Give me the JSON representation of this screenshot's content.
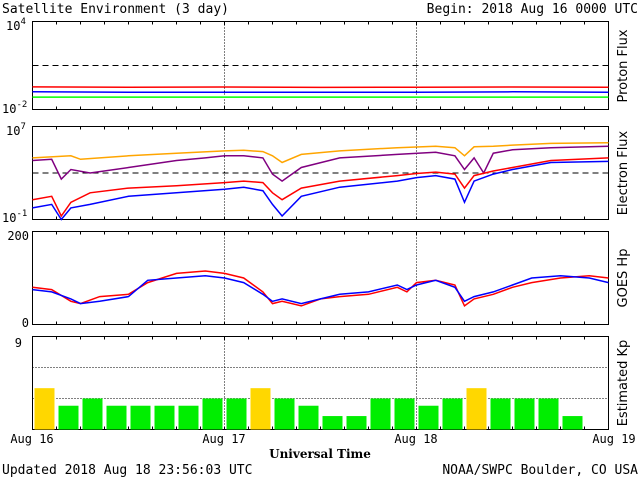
{
  "header": {
    "title": "Satellite Environment (3 day)",
    "begin": "Begin:  2018 Aug 16 0000 UTC"
  },
  "footer": {
    "updated": "Updated 2018 Aug 18 23:56:03 UTC",
    "credit": "NOAA/SWPC Boulder, CO USA"
  },
  "x_axis": {
    "title": "Universal Time",
    "tick_labels": [
      "Aug 16",
      "Aug 17",
      "Aug 18",
      "Aug 19"
    ]
  },
  "colors": {
    "red": "#ff0000",
    "blue": "#0000ff",
    "green": "#00ff00",
    "orange": "#ffa500",
    "purple": "#800080",
    "kp_green": "#00ee00",
    "kp_yellow": "#ffd700"
  },
  "chart_data": [
    {
      "type": "line",
      "ylabel": "Proton Flux",
      "log_scale": true,
      "ylim": [
        0.01,
        10000
      ],
      "ytick_labels": {
        "top": "10",
        "top_exp": "4",
        "bottom": "10",
        "bottom_exp": "-2"
      },
      "threshold": 10,
      "x_range_days": [
        0,
        3
      ],
      "series": [
        {
          "color": "red",
          "x": [
            0,
            0.5,
            1,
            1.5,
            2,
            2.5,
            3
          ],
          "y": [
            0.35,
            0.33,
            0.34,
            0.32,
            0.33,
            0.34,
            0.33
          ]
        },
        {
          "color": "blue",
          "x": [
            0,
            0.5,
            1,
            1.5,
            2,
            2.5,
            3
          ],
          "y": [
            0.16,
            0.15,
            0.15,
            0.15,
            0.15,
            0.16,
            0.15
          ]
        },
        {
          "color": "green",
          "x": [
            0,
            0.5,
            1,
            1.5,
            2,
            2.5,
            3
          ],
          "y": [
            0.07,
            0.07,
            0.07,
            0.07,
            0.07,
            0.07,
            0.07
          ]
        }
      ]
    },
    {
      "type": "line",
      "ylabel": "Electron Flux",
      "log_scale": true,
      "ylim": [
        0.1,
        10000000
      ],
      "ytick_labels": {
        "top": "10",
        "top_exp": "7",
        "bottom": "10",
        "bottom_exp": "-1"
      },
      "threshold": 1000,
      "x_range_days": [
        0,
        3
      ],
      "series": [
        {
          "color": "orange",
          "x": [
            0,
            0.2,
            0.25,
            0.5,
            0.75,
            1.0,
            1.1,
            1.2,
            1.25,
            1.3,
            1.4,
            1.6,
            1.9,
            2.1,
            2.2,
            2.25,
            2.3,
            2.4,
            2.5,
            2.7,
            3.0
          ],
          "y": [
            20000,
            30000,
            15000,
            30000,
            50000,
            80000,
            90000,
            70000,
            30000,
            8000,
            40000,
            80000,
            150000,
            200000,
            150000,
            30000,
            180000,
            200000,
            250000,
            350000,
            400000
          ]
        },
        {
          "color": "purple",
          "x": [
            0,
            0.1,
            0.15,
            0.2,
            0.3,
            0.5,
            0.75,
            0.9,
            1.0,
            1.1,
            1.2,
            1.25,
            1.3,
            1.4,
            1.6,
            1.9,
            2.1,
            2.2,
            2.25,
            2.3,
            2.35,
            2.4,
            2.5,
            2.7,
            3.0
          ],
          "y": [
            12000,
            15000,
            300,
            2000,
            1000,
            3000,
            12000,
            20000,
            30000,
            30000,
            20000,
            800,
            200,
            3000,
            20000,
            40000,
            60000,
            30000,
            2000,
            20000,
            1000,
            50000,
            100000,
            150000,
            200000
          ]
        },
        {
          "color": "red",
          "x": [
            0,
            0.1,
            0.15,
            0.2,
            0.3,
            0.5,
            0.75,
            1.0,
            1.1,
            1.2,
            1.25,
            1.3,
            1.4,
            1.6,
            1.9,
            2.0,
            2.1,
            2.2,
            2.25,
            2.3,
            2.4,
            2.5,
            2.7,
            3.0
          ],
          "y": [
            5,
            10,
            0.2,
            3,
            20,
            50,
            80,
            150,
            200,
            150,
            20,
            5,
            50,
            200,
            600,
            900,
            1200,
            800,
            50,
            600,
            1500,
            3000,
            12000,
            20000
          ]
        },
        {
          "color": "blue",
          "x": [
            0,
            0.1,
            0.15,
            0.2,
            0.3,
            0.5,
            0.75,
            1.0,
            1.1,
            1.2,
            1.25,
            1.3,
            1.4,
            1.6,
            1.9,
            2.0,
            2.1,
            2.2,
            2.25,
            2.3,
            2.4,
            2.5,
            2.7,
            3.0
          ],
          "y": [
            1,
            2,
            0.1,
            1,
            2,
            10,
            20,
            40,
            60,
            30,
            2,
            0.2,
            10,
            60,
            200,
            400,
            600,
            300,
            3,
            200,
            800,
            2000,
            8000,
            10000
          ]
        }
      ]
    },
    {
      "type": "line",
      "ylabel": "GOES Hp",
      "log_scale": false,
      "ylim": [
        0,
        200
      ],
      "ytick_labels": {
        "top": "200",
        "bottom": "0"
      },
      "x_range_days": [
        0,
        3
      ],
      "series": [
        {
          "color": "red",
          "x": [
            0,
            0.1,
            0.2,
            0.25,
            0.35,
            0.5,
            0.6,
            0.75,
            0.9,
            1.0,
            1.1,
            1.2,
            1.25,
            1.3,
            1.4,
            1.5,
            1.6,
            1.75,
            1.9,
            1.95,
            2.0,
            2.1,
            2.2,
            2.25,
            2.3,
            2.4,
            2.5,
            2.6,
            2.75,
            2.9,
            3.0
          ],
          "y": [
            80,
            75,
            50,
            45,
            60,
            65,
            90,
            110,
            115,
            110,
            100,
            70,
            45,
            50,
            40,
            55,
            60,
            65,
            80,
            70,
            90,
            95,
            85,
            40,
            55,
            65,
            80,
            90,
            100,
            105,
            100
          ]
        },
        {
          "color": "blue",
          "x": [
            0,
            0.1,
            0.2,
            0.25,
            0.35,
            0.5,
            0.6,
            0.75,
            0.9,
            1.0,
            1.1,
            1.2,
            1.25,
            1.3,
            1.4,
            1.5,
            1.6,
            1.75,
            1.9,
            1.95,
            2.0,
            2.1,
            2.2,
            2.25,
            2.3,
            2.4,
            2.5,
            2.6,
            2.75,
            2.9,
            3.0
          ],
          "y": [
            75,
            70,
            55,
            45,
            50,
            60,
            95,
            100,
            105,
            100,
            90,
            65,
            50,
            55,
            45,
            55,
            65,
            70,
            85,
            75,
            85,
            95,
            80,
            50,
            60,
            70,
            85,
            100,
            105,
            100,
            90
          ]
        }
      ]
    },
    {
      "type": "bar",
      "ylabel": "Estimated Kp",
      "ylim": [
        0,
        9
      ],
      "ytick_labels": {
        "top": "9"
      },
      "gridlines": [
        3,
        6,
        9
      ],
      "bar_width_hours": 3,
      "values": [
        4,
        2.3,
        3,
        2.3,
        2.3,
        2.3,
        2.3,
        3,
        3,
        4,
        3,
        2.3,
        1.3,
        1.3,
        3,
        3,
        2.3,
        3,
        4,
        3,
        3,
        3,
        1.3
      ],
      "bar_colors": [
        "kp_yellow",
        "kp_green",
        "kp_green",
        "kp_green",
        "kp_green",
        "kp_green",
        "kp_green",
        "kp_green",
        "kp_green",
        "kp_yellow",
        "kp_green",
        "kp_green",
        "kp_green",
        "kp_green",
        "kp_green",
        "kp_green",
        "kp_green",
        "kp_green",
        "kp_yellow",
        "kp_green",
        "kp_green",
        "kp_green",
        "kp_green"
      ]
    }
  ]
}
